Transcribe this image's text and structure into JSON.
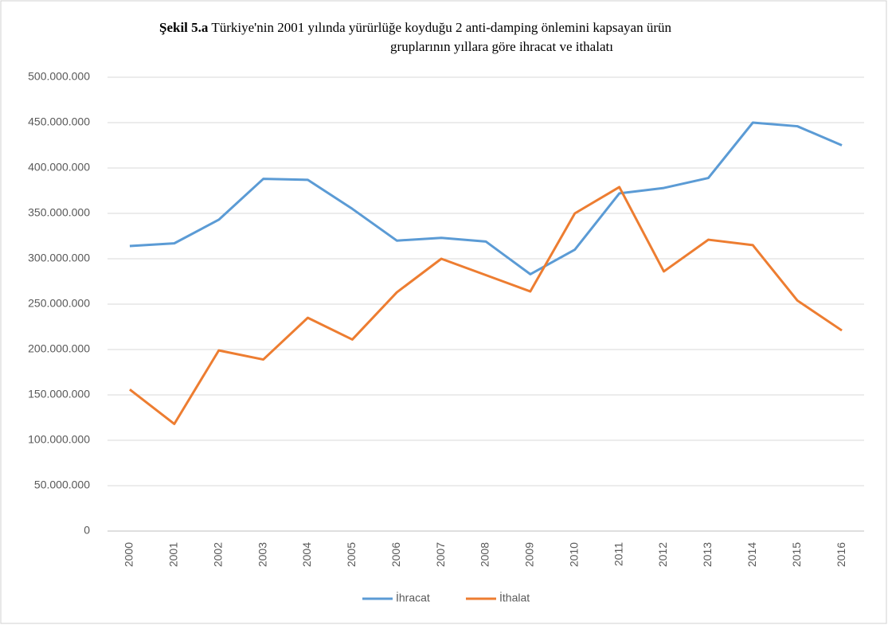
{
  "chart_data": {
    "type": "line",
    "title": [
      "Şekil 5.a",
      "Türkiye'nin 2001 yılında yürürlüğe koyduğu 2 anti-damping  önlemini  kapsayan ürün",
      "gruplarının  yıllara göre ihracat ve ithalatı"
    ],
    "categories": [
      "2000",
      "2001",
      "2002",
      "2003",
      "2004",
      "2005",
      "2006",
      "2007",
      "2008",
      "2009",
      "2010",
      "2011",
      "2012",
      "2013",
      "2014",
      "2015",
      "2016"
    ],
    "series": [
      {
        "name": "İhracat",
        "color": "#5b9bd5",
        "values": [
          314000000,
          317000000,
          343000000,
          388000000,
          387000000,
          355000000,
          320000000,
          323000000,
          319000000,
          283000000,
          310000000,
          372000000,
          378000000,
          389000000,
          450000000,
          446000000,
          425000000
        ]
      },
      {
        "name": "İthalat",
        "color": "#ed7d31",
        "values": [
          156000000,
          118000000,
          199000000,
          189000000,
          235000000,
          211000000,
          263000000,
          300000000,
          282000000,
          264000000,
          350000000,
          379000000,
          286000000,
          321000000,
          315000000,
          254000000,
          221000000
        ]
      }
    ],
    "ylim": [
      0,
      500000000
    ],
    "yticks": [
      0,
      {
        "value": 50000000,
        "label": "50.000.000"
      },
      {
        "value": 100000000,
        "label": "100.000.000"
      },
      {
        "value": 150000000,
        "label": "150.000.000"
      },
      {
        "value": 200000000,
        "label": "200.000.000"
      },
      {
        "value": 250000000,
        "label": "250.000.000"
      },
      {
        "value": 300000000,
        "label": "300.000.000"
      },
      {
        "value": 350000000,
        "label": "350.000.000"
      },
      {
        "value": 400000000,
        "label": "400.000.000"
      },
      {
        "value": 450000000,
        "label": "450.000.000"
      },
      {
        "value": 500000000,
        "label": "500.000.000"
      }
    ],
    "grid": true,
    "legend": "bottom"
  }
}
